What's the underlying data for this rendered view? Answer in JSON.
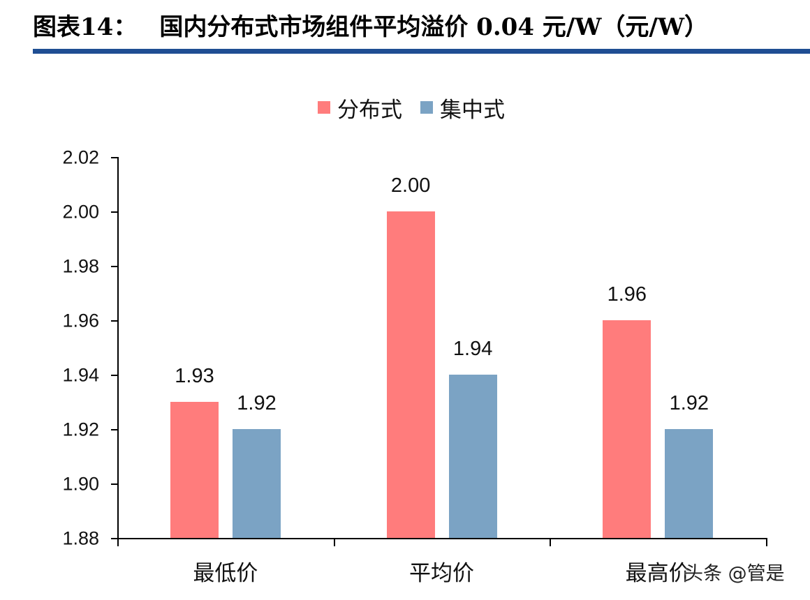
{
  "header": {
    "figure_label": "图表14：",
    "title": "国内分布式市场组件平均溢价 0.04 元/W（元/W）"
  },
  "legend": [
    {
      "name": "分布式",
      "color": "#ff7c7c"
    },
    {
      "name": "集中式",
      "color": "#7ba3c4"
    }
  ],
  "watermark": "头条 @管是",
  "chart_data": {
    "type": "bar",
    "title": "国内分布式市场组件平均溢价 0.04 元/W（元/W）",
    "categories": [
      "最低价",
      "平均价",
      "最高价"
    ],
    "series": [
      {
        "name": "分布式",
        "color": "#ff7c7c",
        "values": [
          1.93,
          2.0,
          1.96
        ],
        "labels": [
          "1.93",
          "2.00",
          "1.96"
        ]
      },
      {
        "name": "集中式",
        "color": "#7ba3c4",
        "values": [
          1.92,
          1.94,
          1.92
        ],
        "labels": [
          "1.92",
          "1.94",
          "1.92"
        ]
      }
    ],
    "xlabel": "",
    "ylabel": "",
    "ylim": [
      1.88,
      2.02
    ],
    "yticks": [
      "2.02",
      "2.00",
      "1.98",
      "1.96",
      "1.94",
      "1.92",
      "1.90",
      "1.88"
    ],
    "grid": false,
    "legend_position": "top"
  }
}
